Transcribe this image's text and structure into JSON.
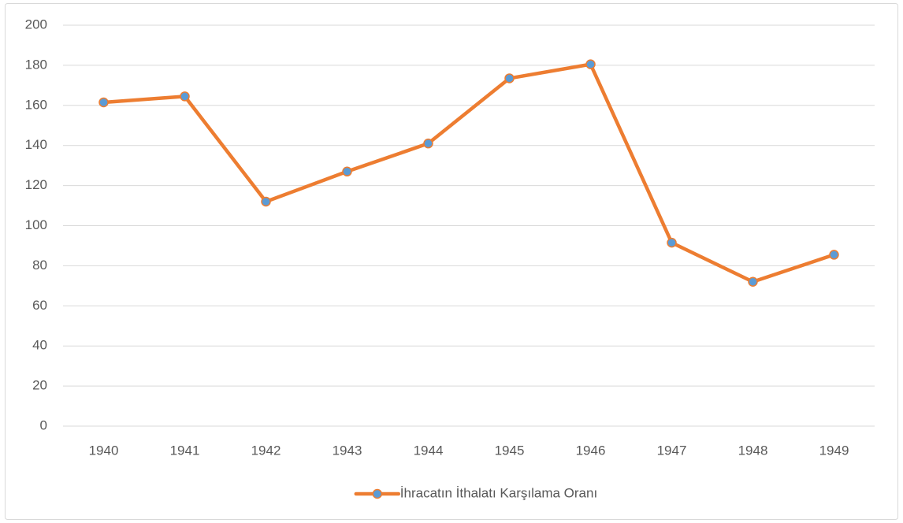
{
  "chart_data": {
    "type": "line",
    "categories": [
      "1940",
      "1941",
      "1942",
      "1943",
      "1944",
      "1945",
      "1946",
      "1947",
      "1948",
      "1949"
    ],
    "series": [
      {
        "name": "İhracatın İthalatı Karşılama Oranı",
        "color": "#ED7D31",
        "marker_color": "#5B9BD5",
        "values": [
          161.5,
          164.5,
          112,
          127,
          141,
          173.5,
          180.5,
          91.5,
          72,
          85.5
        ]
      }
    ],
    "ylim": [
      0,
      200
    ],
    "yticks": [
      0,
      20,
      40,
      60,
      80,
      100,
      120,
      140,
      160,
      180,
      200
    ],
    "grid": true,
    "legend": "bottom"
  }
}
